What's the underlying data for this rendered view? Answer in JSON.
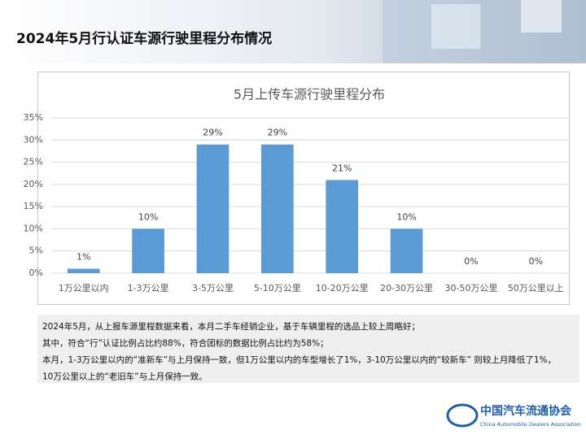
{
  "header": {
    "title": "2024年5月行认证车源行驶里程分布情况"
  },
  "chart_data": {
    "type": "bar",
    "title": "5月上传车源行驶里程分布",
    "categories": [
      "1万公里以内",
      "1-3万公里",
      "3-5万公里",
      "5-10万公里",
      "10-20万公里",
      "20-30万公里",
      "30-50万公里",
      "50万公里以上"
    ],
    "values": [
      1,
      10,
      29,
      29,
      21,
      10,
      0,
      0
    ],
    "value_labels": [
      "1%",
      "10%",
      "29%",
      "29%",
      "21%",
      "10%",
      "0%",
      "0%"
    ],
    "color": "#5b9bd5",
    "ylim": [
      0,
      35
    ],
    "yticks": [
      {
        "value": 0,
        "label": "0%"
      },
      {
        "value": 5,
        "label": "5%"
      },
      {
        "value": 10,
        "label": "10%"
      },
      {
        "value": 15,
        "label": "15%"
      },
      {
        "value": 20,
        "label": "20%"
      },
      {
        "value": 25,
        "label": "25%"
      },
      {
        "value": 30,
        "label": "30%"
      },
      {
        "value": 35,
        "label": "35%"
      }
    ],
    "grid": true
  },
  "notes": [
    "2024年5月，从上报车源里程数据来看，本月二手车经销企业，基于车辆里程的选品上较上周略好；",
    "其中，符合“行”认证比例占比约88%，符合团标的数据比例占比约为58%；",
    "本月，1-3万公里以内的“准新车”与上月保持一致，但1万公里以内的车型增长了1%，3-10万公里以内的“较新车” 则较上月降低了1%，",
    "10万公里以上的“老旧车”与上月保持一致。"
  ],
  "logo": {
    "name": "中国汽车流通协会",
    "english": "China Automobile Dealers Association"
  }
}
